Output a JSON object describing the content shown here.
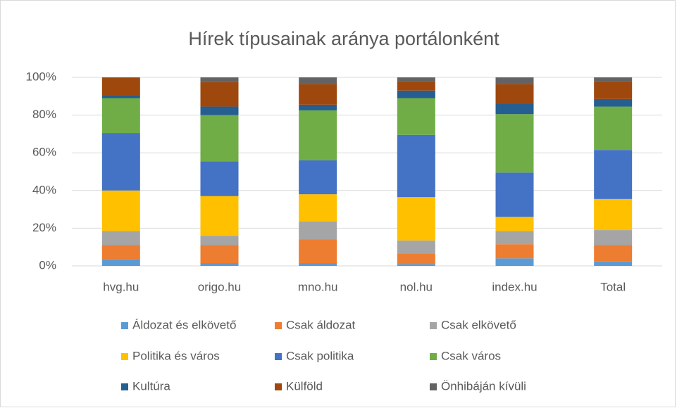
{
  "chart_data": {
    "type": "stacked_bar",
    "title": "Hírek típusainak aránya portálonként",
    "categories": [
      "hvg.hu",
      "origo.hu",
      "mno.hu",
      "nol.hu",
      "index.hu",
      "Total"
    ],
    "series": [
      {
        "name": "Áldozat és elkövető",
        "color": "#5b9bd5",
        "values": [
          3.5,
          1.5,
          1.5,
          1,
          4,
          2.5
        ]
      },
      {
        "name": "Csak áldozat",
        "color": "#ed7d31",
        "values": [
          7.5,
          9.5,
          12.5,
          5.5,
          7.5,
          8.5
        ]
      },
      {
        "name": "Csak elkövető",
        "color": "#a5a5a5",
        "values": [
          7.5,
          5,
          9.5,
          7,
          7,
          8
        ]
      },
      {
        "name": "Politika és város",
        "color": "#ffc000",
        "values": [
          21.5,
          21,
          14.5,
          23,
          7.5,
          16.5
        ]
      },
      {
        "name": "Csak politika",
        "color": "#4472c4",
        "values": [
          30.5,
          18.5,
          18,
          33,
          23.5,
          26
        ]
      },
      {
        "name": "Csak város",
        "color": "#70ad47",
        "values": [
          18.5,
          24.5,
          26.5,
          19.5,
          31,
          23
        ]
      },
      {
        "name": "Kultúra",
        "color": "#255e91",
        "values": [
          1.5,
          4.5,
          3,
          4,
          5.5,
          4
        ]
      },
      {
        "name": "Külföld",
        "color": "#9e480e",
        "values": [
          9.5,
          13,
          11,
          5,
          10.5,
          9.5
        ]
      },
      {
        "name": "Önhibáján kívüli",
        "color": "#636363",
        "values": [
          0,
          2.5,
          3.5,
          2,
          3.5,
          2
        ]
      }
    ],
    "ylim": [
      0,
      100
    ],
    "yticks": [
      {
        "value": 0,
        "label": "0%"
      },
      {
        "value": 20,
        "label": "20%"
      },
      {
        "value": 40,
        "label": "40%"
      },
      {
        "value": 60,
        "label": "60%"
      },
      {
        "value": 80,
        "label": "80%"
      },
      {
        "value": 100,
        "label": "100%"
      }
    ],
    "grid": true
  }
}
